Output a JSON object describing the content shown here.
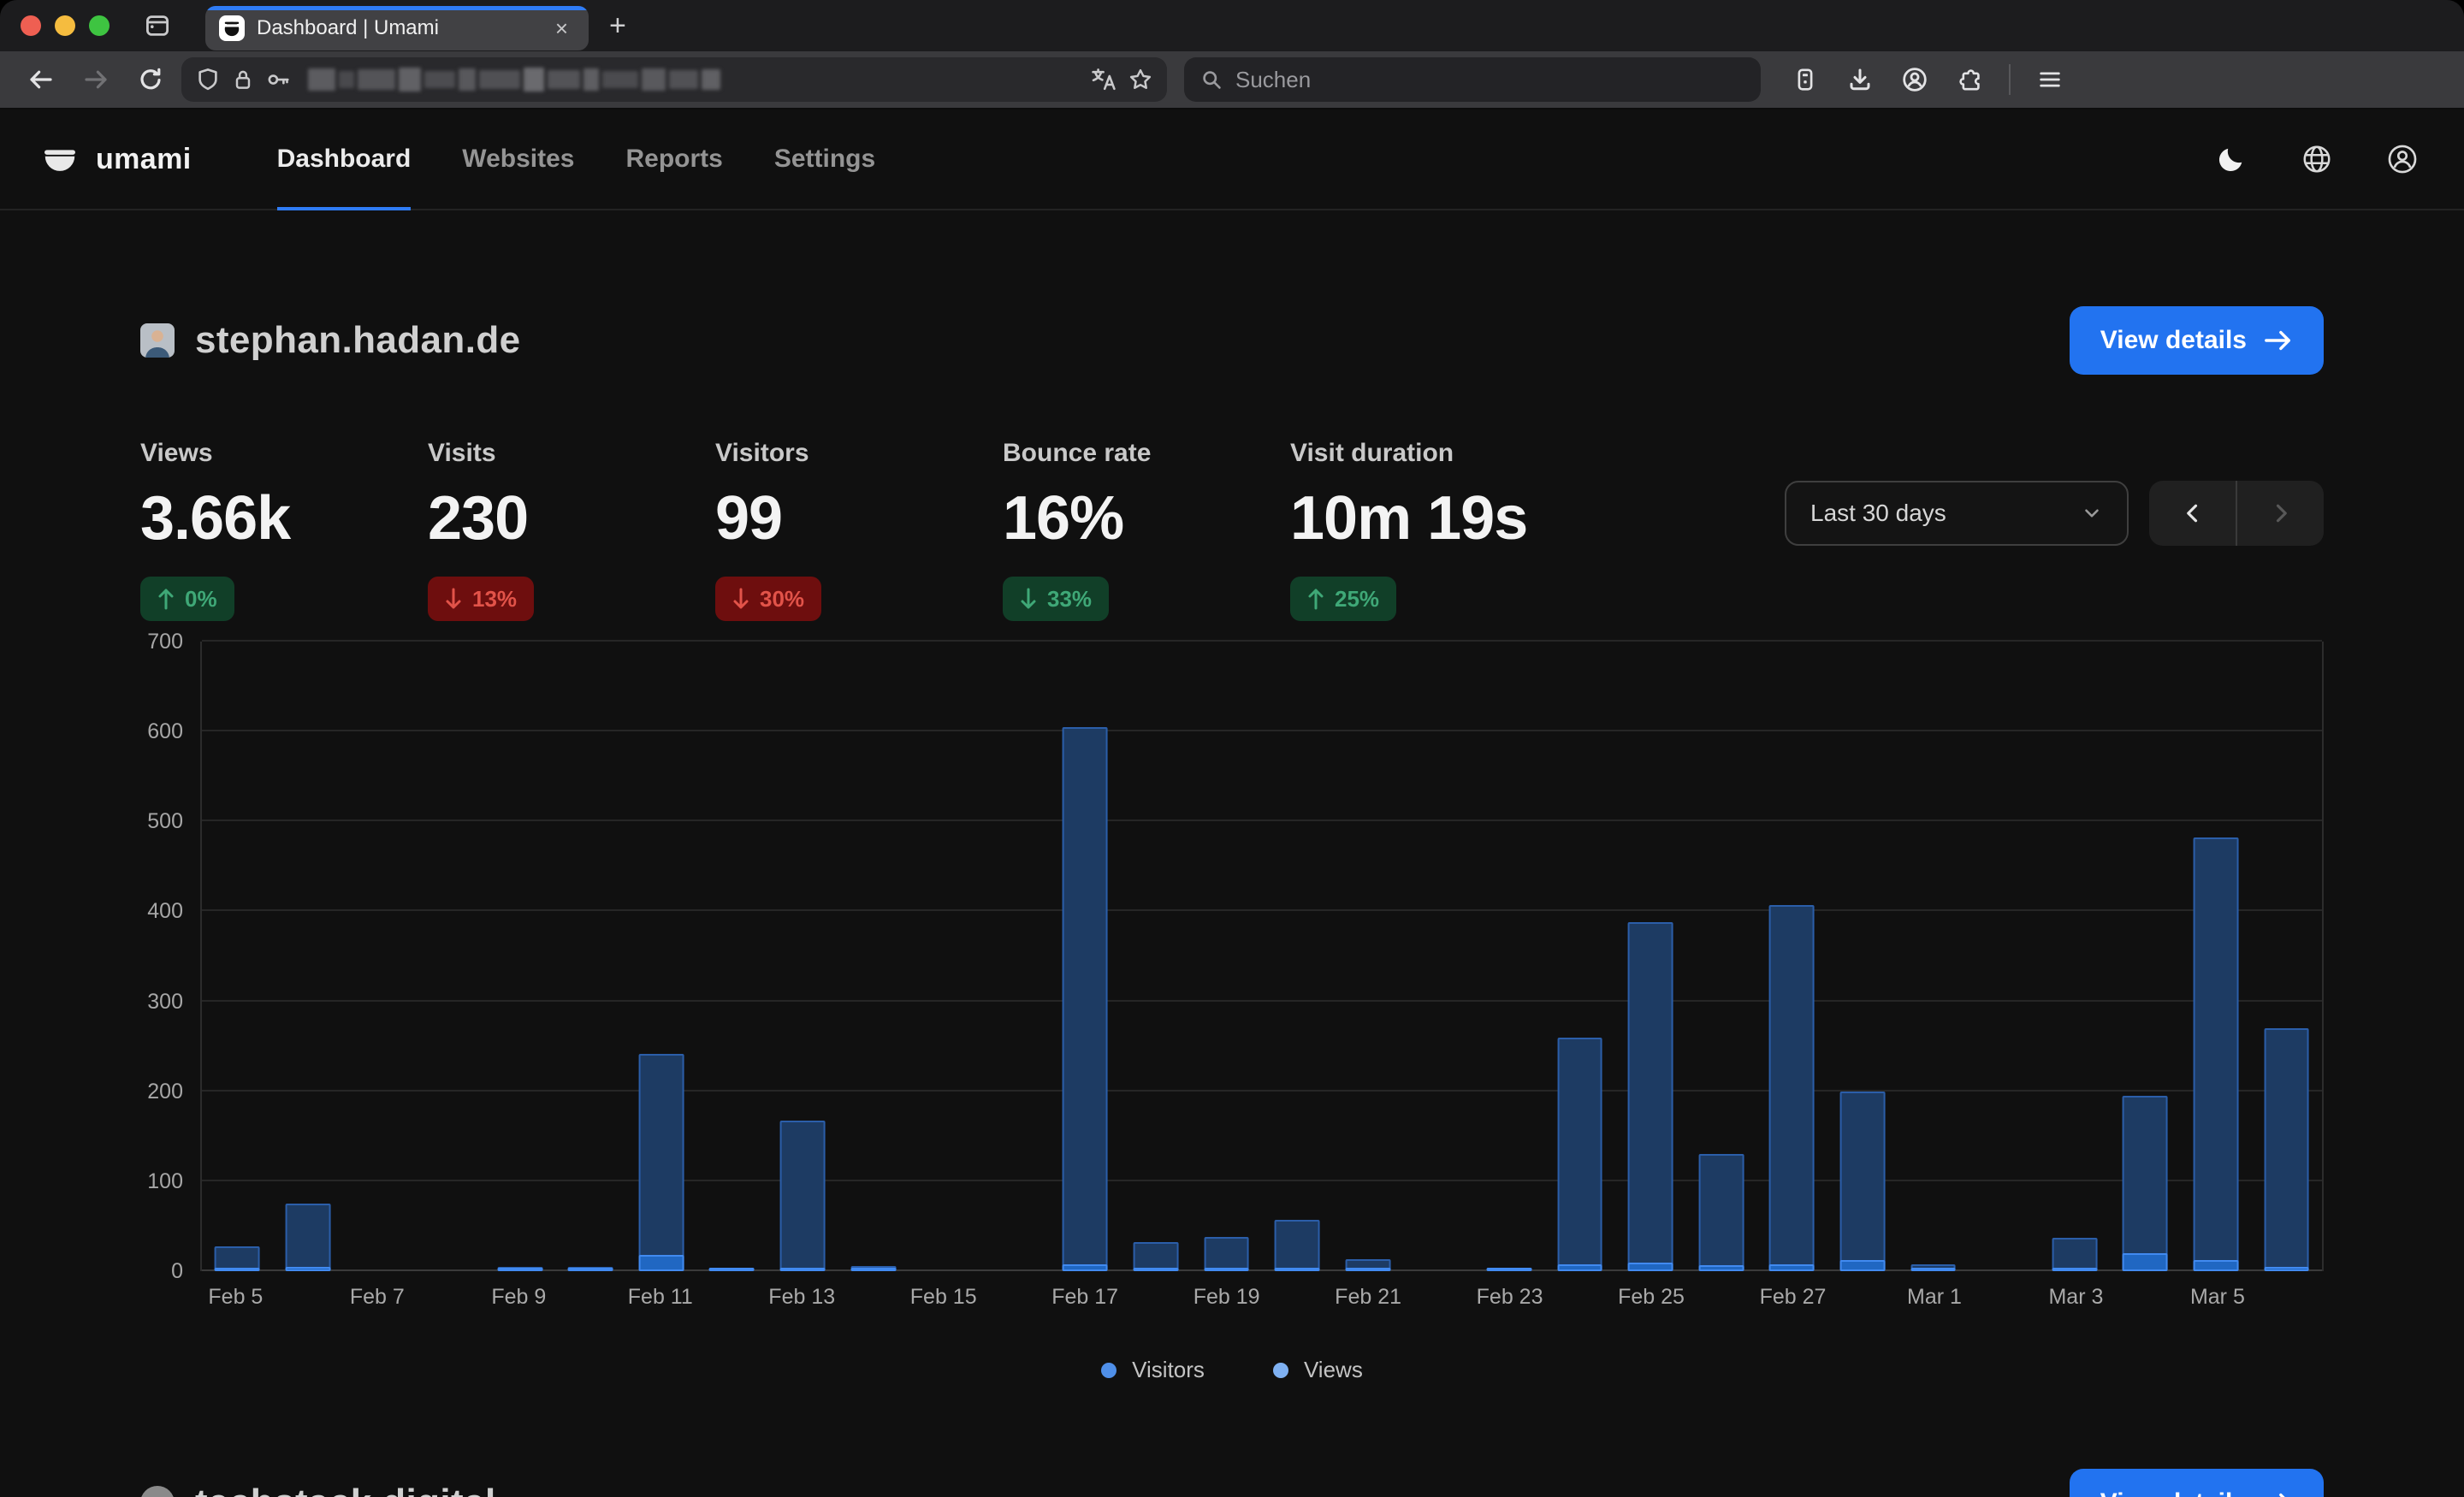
{
  "browser": {
    "tab": {
      "title": "Dashboard | Umami",
      "close": "×"
    },
    "new_tab_label": "+",
    "search": {
      "placeholder": "Suchen"
    }
  },
  "nav": {
    "brand": "umami",
    "items": [
      {
        "label": "Dashboard",
        "active": true
      },
      {
        "label": "Websites",
        "active": false
      },
      {
        "label": "Reports",
        "active": false
      },
      {
        "label": "Settings",
        "active": false
      }
    ]
  },
  "site": {
    "title": "stephan.hadan.de",
    "view_details": "View details"
  },
  "stats": [
    {
      "label": "Views",
      "value": "3.66k",
      "change": "0%",
      "direction": "up",
      "tone": "positive"
    },
    {
      "label": "Visits",
      "value": "230",
      "change": "13%",
      "direction": "down",
      "tone": "negative"
    },
    {
      "label": "Visitors",
      "value": "99",
      "change": "30%",
      "direction": "down",
      "tone": "negative"
    },
    {
      "label": "Bounce rate",
      "value": "16%",
      "change": "33%",
      "direction": "down",
      "tone": "positive"
    },
    {
      "label": "Visit duration",
      "value": "10m 19s",
      "change": "25%",
      "direction": "up",
      "tone": "positive"
    }
  ],
  "controls": {
    "date_range": "Last 30 days"
  },
  "chart_data": {
    "type": "bar",
    "title": "",
    "xlabel": "",
    "ylabel": "",
    "ylim": [
      0,
      700
    ],
    "yticks": [
      0,
      100,
      200,
      300,
      400,
      500,
      600,
      700
    ],
    "grid": "horizontal",
    "legend_position": "bottom",
    "x": [
      "Feb 5",
      "Feb 6",
      "Feb 7",
      "Feb 8",
      "Feb 9",
      "Feb 10",
      "Feb 11",
      "Feb 12",
      "Feb 13",
      "Feb 14",
      "Feb 15",
      "Feb 16",
      "Feb 17",
      "Feb 18",
      "Feb 19",
      "Feb 20",
      "Feb 21",
      "Feb 22",
      "Feb 23",
      "Feb 24",
      "Feb 25",
      "Feb 26",
      "Feb 27",
      "Feb 28",
      "Mar 1",
      "Mar 2",
      "Mar 3",
      "Mar 4",
      "Mar 5",
      "Mar 6"
    ],
    "xticks": [
      "Feb 5",
      "Feb 7",
      "Feb 9",
      "Feb 11",
      "Feb 13",
      "Feb 15",
      "Feb 17",
      "Feb 19",
      "Feb 21",
      "Feb 23",
      "Feb 25",
      "Feb 27",
      "Mar 1",
      "Mar 3",
      "Mar 5"
    ],
    "series": [
      {
        "name": "Views",
        "color": "#1d3b63",
        "values": [
          28,
          75,
          0,
          0,
          5,
          5,
          242,
          2,
          167,
          6,
          0,
          0,
          605,
          32,
          38,
          57,
          13,
          0,
          2,
          260,
          388,
          130,
          407,
          200,
          8,
          0,
          37,
          195,
          482,
          270
        ]
      },
      {
        "name": "Visitors",
        "color": "#2067c2",
        "values": [
          3,
          5,
          0,
          0,
          1,
          1,
          18,
          1,
          4,
          2,
          0,
          0,
          8,
          2,
          3,
          3,
          2,
          0,
          1,
          8,
          10,
          7,
          8,
          12,
          2,
          0,
          2,
          20,
          12,
          5
        ]
      }
    ],
    "legend": [
      {
        "label": "Visitors",
        "color": "#4f8fe8"
      },
      {
        "label": "Views",
        "color": "#7fb1f2"
      }
    ]
  },
  "second_site": {
    "title": "techstack.digital",
    "view_details": "View details"
  },
  "colors": {
    "accent": "#2f7cf6",
    "button": "#2273f0",
    "badge_positive_bg": "#113f28",
    "badge_positive_text": "#3fa877",
    "badge_negative_bg": "#6e0e0e",
    "badge_negative_text": "#e25349",
    "views_bar": "#1d3b63",
    "visitors_bar": "#2067c2"
  }
}
